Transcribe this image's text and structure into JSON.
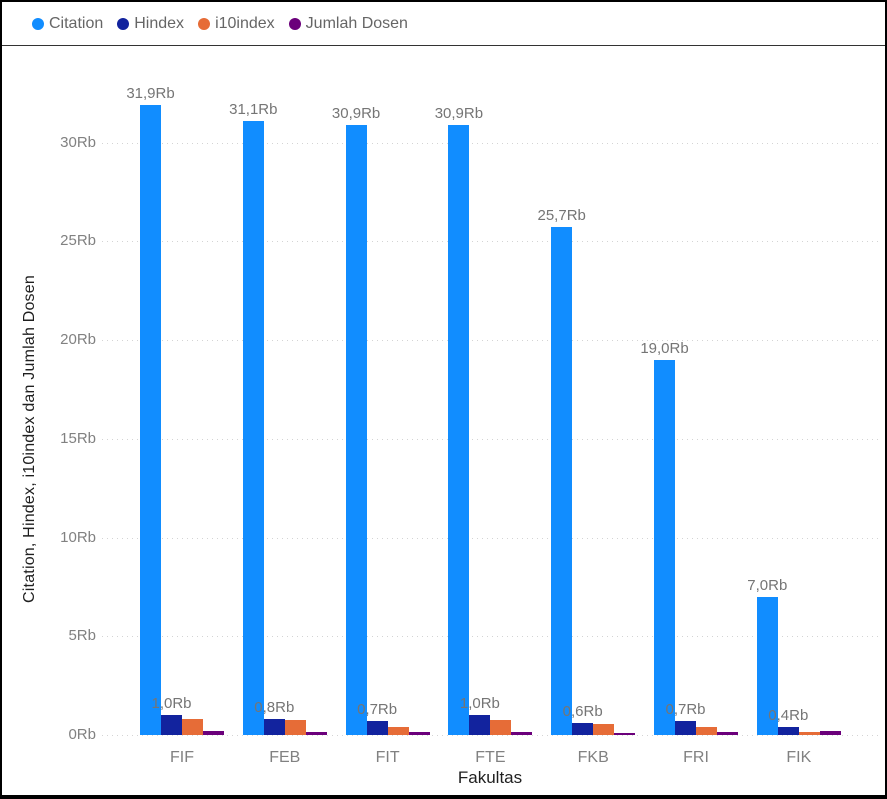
{
  "legend": {
    "items": [
      {
        "label": "Citation",
        "color": "#118DFF"
      },
      {
        "label": "Hindex",
        "color": "#12239E"
      },
      {
        "label": "i10index",
        "color": "#E66C37"
      },
      {
        "label": "Jumlah Dosen",
        "color": "#6B007B"
      }
    ]
  },
  "chart_data": {
    "type": "bar",
    "title": "",
    "xlabel": "Fakultas",
    "ylabel": "Citation, Hindex, i10index dan Jumlah Dosen",
    "unit": "Rb",
    "ylim": [
      0,
      33
    ],
    "grid": "dotted horizontal",
    "legend_position": "top-left",
    "categories": [
      "FIF",
      "FEB",
      "FIT",
      "FTE",
      "FKB",
      "FRI",
      "FIK"
    ],
    "yticks": [
      {
        "value": 0,
        "label": "0Rb"
      },
      {
        "value": 5,
        "label": "5Rb"
      },
      {
        "value": 10,
        "label": "10Rb"
      },
      {
        "value": 15,
        "label": "15Rb"
      },
      {
        "value": 20,
        "label": "20Rb"
      },
      {
        "value": 25,
        "label": "25Rb"
      },
      {
        "value": 30,
        "label": "30Rb"
      }
    ],
    "series": [
      {
        "name": "Citation",
        "color": "#118DFF",
        "values": [
          31.9,
          31.1,
          30.9,
          30.9,
          25.7,
          19.0,
          7.0
        ],
        "data_labels": [
          "31,9Rb",
          "31,1Rb",
          "30,9Rb",
          "30,9Rb",
          "25,7Rb",
          "19,0Rb",
          "7,0Rb"
        ]
      },
      {
        "name": "Hindex",
        "color": "#12239E",
        "values": [
          1.0,
          0.8,
          0.7,
          1.0,
          0.6,
          0.7,
          0.4
        ],
        "data_labels": [
          "1,0Rb",
          "0,8Rb",
          "0,7Rb",
          "1,0Rb",
          "0,6Rb",
          "0,7Rb",
          "0,4Rb"
        ]
      },
      {
        "name": "i10index",
        "color": "#E66C37",
        "values": [
          0.8,
          0.75,
          0.4,
          0.75,
          0.55,
          0.4,
          0.15
        ],
        "data_labels": null
      },
      {
        "name": "Jumlah Dosen",
        "color": "#6B007B",
        "values": [
          0.2,
          0.15,
          0.13,
          0.15,
          0.1,
          0.15,
          0.2
        ],
        "data_labels": null
      }
    ]
  }
}
